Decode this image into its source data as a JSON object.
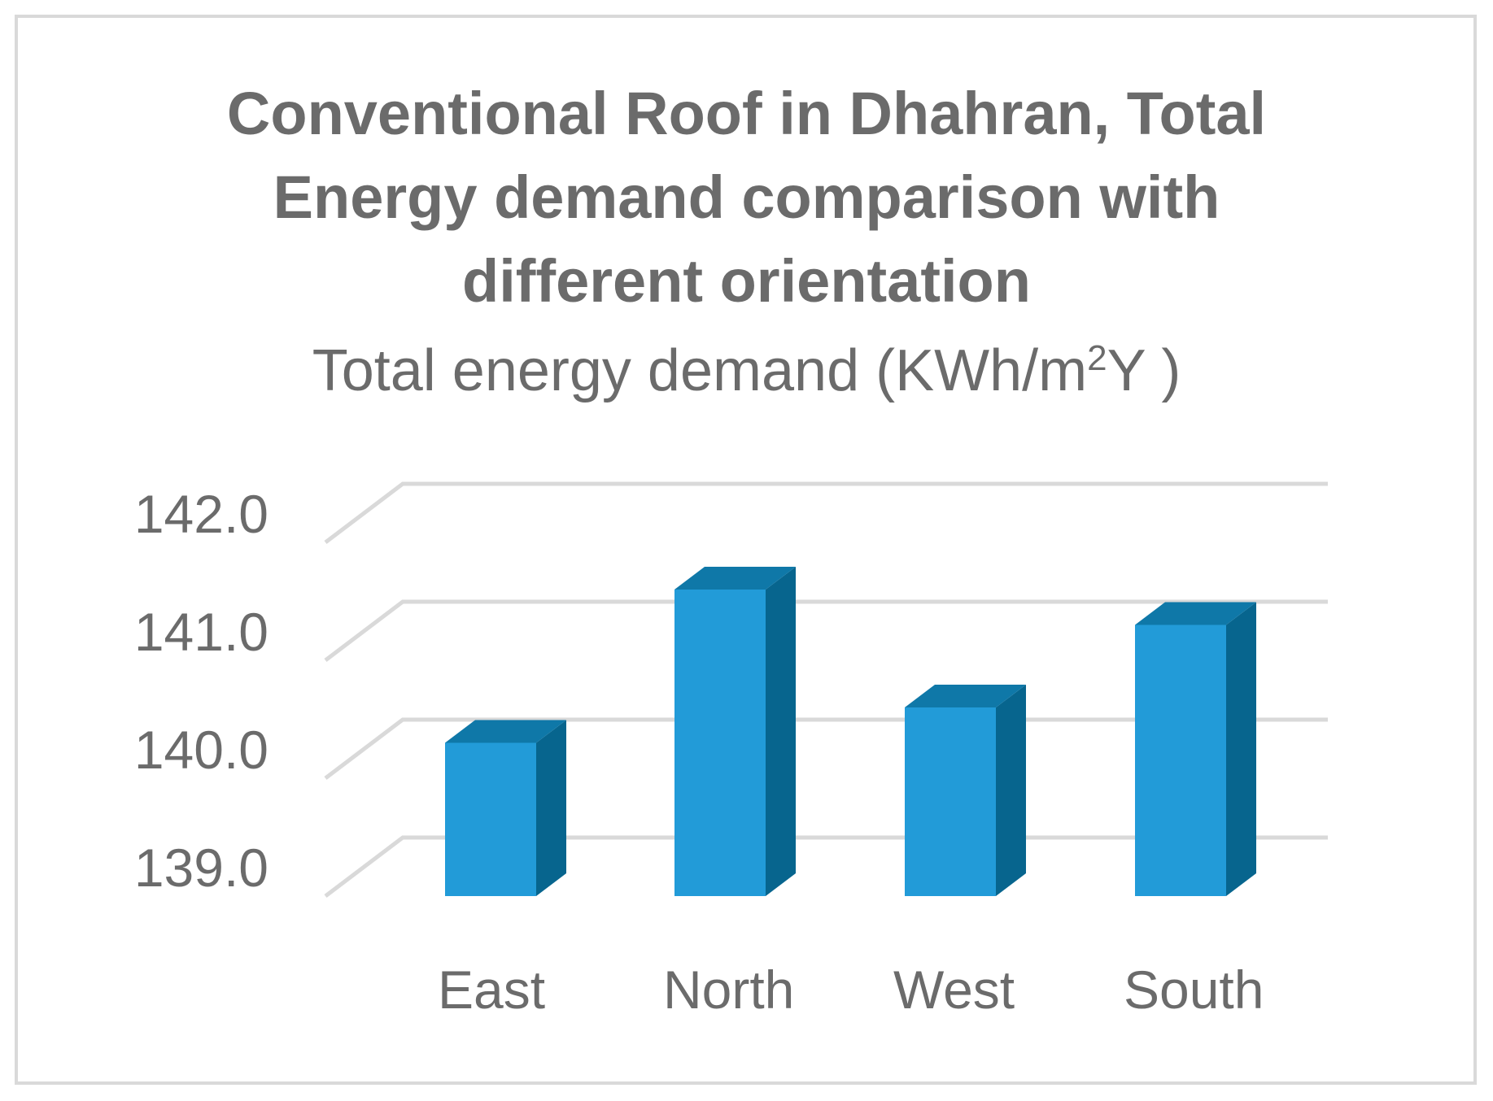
{
  "chart_data": {
    "type": "bar",
    "style": "3d-column",
    "title_lines": [
      "Conventional Roof in Dhahran, Total",
      "Energy demand comparison with",
      "different orientation"
    ],
    "subtitle": {
      "prefix": "Total energy demand (KWh/m",
      "superscript": "2",
      "suffix": "Y )"
    },
    "categories": [
      "East",
      "North",
      "West",
      "South"
    ],
    "values": [
      140.3,
      141.6,
      140.6,
      141.3
    ],
    "ylim": [
      139.0,
      142.0
    ],
    "yticks": [
      "139.0",
      "140.0",
      "141.0",
      "142.0"
    ],
    "grid": true,
    "legend": "none",
    "colors": {
      "front": "#229bd8",
      "side": "#07658e",
      "top": "#0f78a8",
      "grid": "#d9d9d9",
      "text": "#6b6b6b"
    }
  }
}
